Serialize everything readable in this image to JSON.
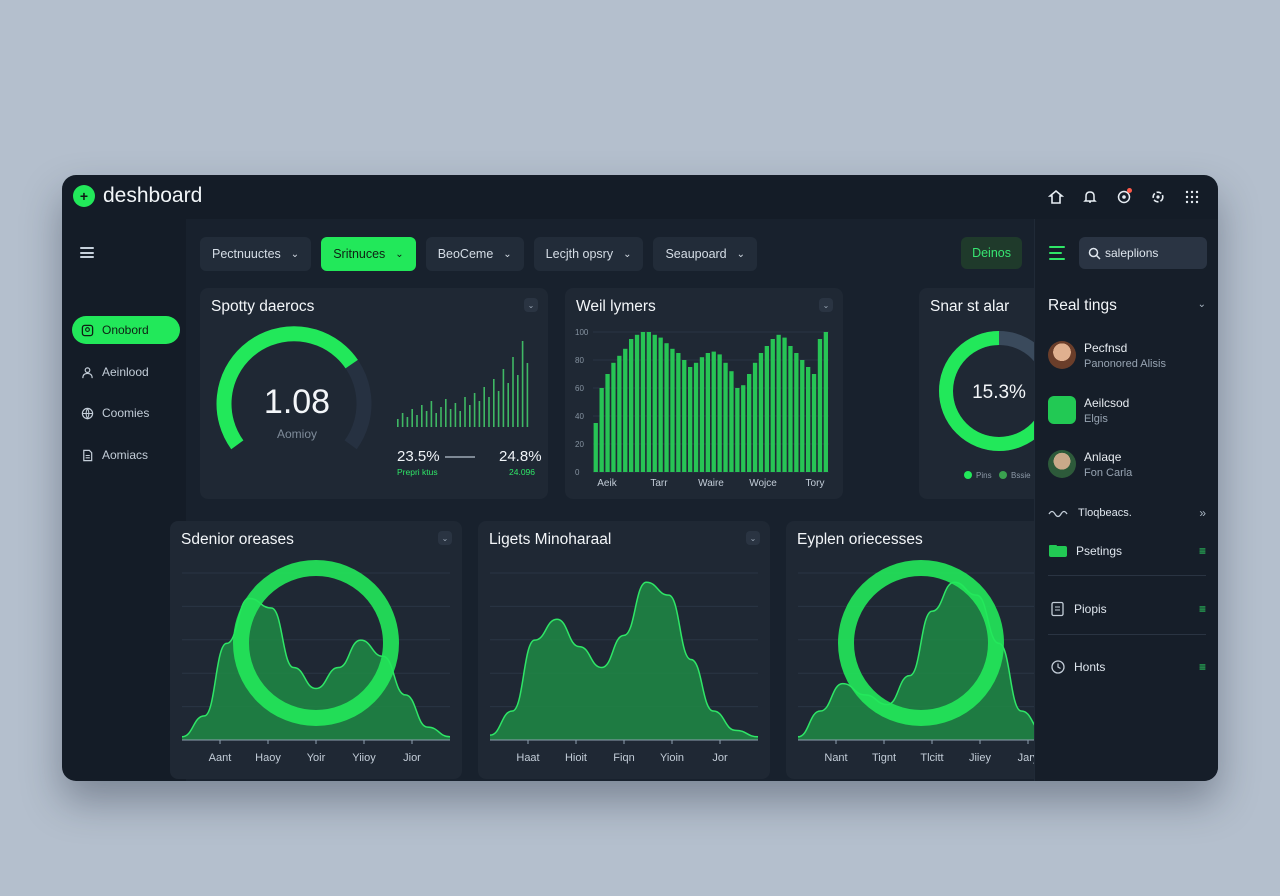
{
  "app": {
    "title": "deshboard"
  },
  "sidebar": {
    "items": [
      {
        "label": "Onobord",
        "icon": "dashboard-icon",
        "active": true
      },
      {
        "label": "Aeinlood",
        "icon": "user-icon",
        "active": false
      },
      {
        "label": "Coomies",
        "icon": "globe-icon",
        "active": false
      },
      {
        "label": "Aomiacs",
        "icon": "document-icon",
        "active": false
      }
    ]
  },
  "filters": [
    {
      "label": "Pectnuuctes",
      "active": false
    },
    {
      "label": "Sritnuces",
      "active": true
    },
    {
      "label": "BeoCeme",
      "active": false
    },
    {
      "label": "Lecjth opsry",
      "active": false
    },
    {
      "label": "Seaupoard",
      "active": false
    }
  ],
  "demo_button": "Deinos",
  "search": {
    "value": "saleplions"
  },
  "cards": {
    "gauge": {
      "title": "Spotty daerocs",
      "value": "1.08",
      "sublabel": "Aomioy",
      "level": 0.72,
      "stat1": {
        "value": "23.5%",
        "sub": "Prepri ktus"
      },
      "stat2": {
        "value": "24.8%",
        "sub": "24.096"
      }
    },
    "bars": {
      "title": "Weil lymers"
    },
    "donut": {
      "title": "Snar st alar",
      "value": "15.3%",
      "legend": [
        "Pins",
        "Bssie"
      ]
    },
    "area1": {
      "title": "Sdenior oreases"
    },
    "area2": {
      "title": "Ligets Minoharaal"
    },
    "area3": {
      "title": "Eyplen oriecesses"
    }
  },
  "right_panel": {
    "title": "Real tings",
    "people": [
      {
        "name": "Pecfnsd",
        "sub": "Panonored Alisis"
      },
      {
        "name": "Aeilcsod",
        "sub": "Elgis"
      },
      {
        "name": "Anlaqe",
        "sub": "Fon Carla"
      }
    ],
    "rows": [
      {
        "label": "Tloqbeacs.",
        "icon": "wave-icon"
      },
      {
        "label": "Psetings",
        "icon": "folder-icon"
      },
      {
        "label": "Piopis",
        "icon": "file-icon"
      },
      {
        "label": "Honts",
        "icon": "clock-icon"
      }
    ]
  },
  "chart_data": [
    {
      "type": "bar",
      "title": "Weil lymers",
      "y_tick_labels": [
        "100",
        "80",
        "60",
        "40",
        "20",
        "0"
      ],
      "x_tick_labels": [
        "Aeik",
        "Tarr",
        "Waire",
        "Wojce",
        "Tory"
      ],
      "values": [
        35,
        60,
        70,
        78,
        83,
        88,
        95,
        98,
        100,
        100,
        98,
        96,
        92,
        88,
        85,
        80,
        75,
        78,
        82,
        85,
        86,
        84,
        78,
        72,
        60,
        62,
        70,
        78,
        85,
        90,
        95,
        98,
        96,
        90,
        85,
        80,
        75,
        70,
        95,
        100
      ],
      "ylim": [
        0,
        100
      ]
    },
    {
      "type": "area",
      "title": "Sdenior oreases",
      "x_tick_labels": [
        "Aant",
        "Haoy",
        "Yoir",
        "Yiioy",
        "Jior"
      ],
      "x": [
        0,
        1,
        2,
        3,
        4,
        5,
        6,
        7,
        8,
        9,
        10,
        11,
        12
      ],
      "values": [
        2,
        15,
        60,
        88,
        82,
        45,
        32,
        45,
        62,
        52,
        28,
        8,
        2
      ]
    },
    {
      "type": "area",
      "title": "Ligets Minoharaal",
      "x_tick_labels": [
        "Haat",
        "Hioit",
        "Fiqn",
        "Yioin",
        "Jor"
      ],
      "x": [
        0,
        1,
        2,
        3,
        4,
        5,
        6,
        7,
        8,
        9,
        10,
        11,
        12
      ],
      "values": [
        3,
        18,
        62,
        75,
        58,
        45,
        65,
        98,
        90,
        50,
        18,
        6,
        2
      ]
    },
    {
      "type": "area",
      "title": "Eyplen oriecesses",
      "x_tick_labels": [
        "Nant",
        "Tignt",
        "Tlcitt",
        "Jiiey",
        "Jary"
      ],
      "x": [
        0,
        1,
        2,
        3,
        4,
        5,
        6,
        7,
        8,
        9,
        10,
        11,
        12
      ],
      "values": [
        2,
        18,
        35,
        28,
        22,
        40,
        80,
        98,
        90,
        60,
        18,
        5,
        2
      ]
    }
  ],
  "colors": {
    "accent": "#22e85a",
    "bg": "#141c27",
    "card": "#1f2834"
  }
}
